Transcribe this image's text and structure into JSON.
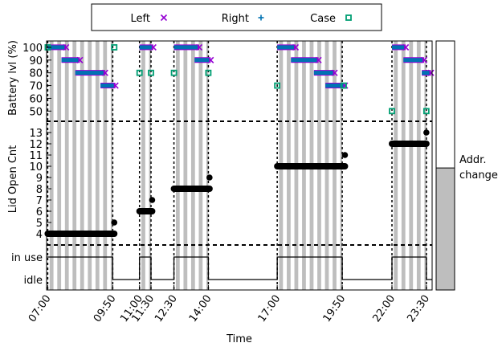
{
  "chart_data": {
    "type": "scatter",
    "xlabel": "Time",
    "x_ticks": [
      {
        "label": "07:00",
        "value": 7.0
      },
      {
        "label": "09:50",
        "value": 9.833
      },
      {
        "label": "11:00",
        "value": 11.0
      },
      {
        "label": "11:30",
        "value": 11.5
      },
      {
        "label": "12:30",
        "value": 12.5
      },
      {
        "label": "14:00",
        "value": 14.0
      },
      {
        "label": "17:00",
        "value": 17.0
      },
      {
        "label": "19:50",
        "value": 19.833
      },
      {
        "label": "22:00",
        "value": 22.0
      },
      {
        "label": "23:30",
        "value": 23.5
      }
    ],
    "xlim": [
      6.95,
      23.75
    ],
    "legend": {
      "position": "top",
      "entries": [
        {
          "name": "Left",
          "marker": "x",
          "color": "#9400d3"
        },
        {
          "name": "Right",
          "marker": "+",
          "color": "#0072b2"
        },
        {
          "name": "Case",
          "marker": "square",
          "color": "#009e73"
        }
      ]
    },
    "active_intervals": [
      [
        7.0,
        9.833
      ],
      [
        11.0,
        11.5
      ],
      [
        12.5,
        14.0
      ],
      [
        17.0,
        19.833
      ],
      [
        22.0,
        23.5
      ]
    ],
    "panels": {
      "battery": {
        "ylabel": "Battery lvl (%)",
        "yticks": [
          50,
          60,
          70,
          80,
          90,
          100
        ],
        "ylim": [
          42,
          105
        ],
        "left": [
          {
            "x": [
              7.0,
              7.8
            ],
            "y": 100
          },
          {
            "x": [
              7.6,
              8.4
            ],
            "y": 90
          },
          {
            "x": [
              8.2,
              9.5
            ],
            "y": 80
          },
          {
            "x": [
              9.3,
              9.95
            ],
            "y": 70
          },
          {
            "x": [
              11.0,
              11.6
            ],
            "y": 100
          },
          {
            "x": [
              12.5,
              13.6
            ],
            "y": 100
          },
          {
            "x": [
              13.4,
              14.1
            ],
            "y": 90
          },
          {
            "x": [
              17.0,
              17.8
            ],
            "y": 100
          },
          {
            "x": [
              17.6,
              18.8
            ],
            "y": 90
          },
          {
            "x": [
              18.6,
              19.5
            ],
            "y": 80
          },
          {
            "x": [
              19.1,
              19.95
            ],
            "y": 70
          },
          {
            "x": [
              22.0,
              22.6
            ],
            "y": 100
          },
          {
            "x": [
              22.5,
              23.4
            ],
            "y": 90
          },
          {
            "x": [
              23.3,
              23.7
            ],
            "y": 80
          }
        ],
        "right": [
          {
            "x": [
              7.0,
              7.8
            ],
            "y": 100
          },
          {
            "x": [
              7.6,
              8.4
            ],
            "y": 90
          },
          {
            "x": [
              8.2,
              9.5
            ],
            "y": 80
          },
          {
            "x": [
              9.3,
              9.95
            ],
            "y": 70
          },
          {
            "x": [
              11.0,
              11.6
            ],
            "y": 100
          },
          {
            "x": [
              12.5,
              13.6
            ],
            "y": 100
          },
          {
            "x": [
              13.4,
              14.1
            ],
            "y": 90
          },
          {
            "x": [
              17.0,
              17.8
            ],
            "y": 100
          },
          {
            "x": [
              17.6,
              18.8
            ],
            "y": 90
          },
          {
            "x": [
              18.6,
              19.5
            ],
            "y": 80
          },
          {
            "x": [
              19.1,
              19.95
            ],
            "y": 70
          },
          {
            "x": [
              22.0,
              22.6
            ],
            "y": 100
          },
          {
            "x": [
              22.5,
              23.4
            ],
            "y": 90
          },
          {
            "x": [
              23.3,
              23.7
            ],
            "y": 80
          }
        ],
        "case": [
          {
            "x": 7.0,
            "y": 100
          },
          {
            "x": 9.9,
            "y": 100
          },
          {
            "x": 11.0,
            "y": 80
          },
          {
            "x": 11.5,
            "y": 80
          },
          {
            "x": 12.5,
            "y": 80
          },
          {
            "x": 14.0,
            "y": 80
          },
          {
            "x": 17.0,
            "y": 70
          },
          {
            "x": 19.9,
            "y": 70
          },
          {
            "x": 22.0,
            "y": 50
          },
          {
            "x": 23.5,
            "y": 50
          }
        ]
      },
      "lid": {
        "ylabel": "Lid Open Cnt",
        "yticks": [
          4,
          5,
          6,
          7,
          8,
          9,
          10,
          11,
          12,
          13
        ],
        "ylim": [
          3.0,
          14.0
        ],
        "segments": [
          {
            "x": [
              7.0,
              9.9
            ],
            "y": 4
          },
          {
            "x": [
              11.0,
              11.55
            ],
            "y": 6
          },
          {
            "x": [
              12.5,
              14.05
            ],
            "y": 8
          },
          {
            "x": [
              17.0,
              19.95
            ],
            "y": 10
          },
          {
            "x": [
              22.0,
              23.5
            ],
            "y": 12
          }
        ],
        "points": [
          {
            "x": 9.9,
            "y": 5
          },
          {
            "x": 11.55,
            "y": 7
          },
          {
            "x": 14.05,
            "y": 9
          },
          {
            "x": 19.95,
            "y": 11
          },
          {
            "x": 23.5,
            "y": 13
          }
        ]
      },
      "usage": {
        "categories": [
          "idle",
          "in use"
        ]
      }
    },
    "colorbar": {
      "label": "Addr. change",
      "fill_fraction": 0.49
    }
  }
}
